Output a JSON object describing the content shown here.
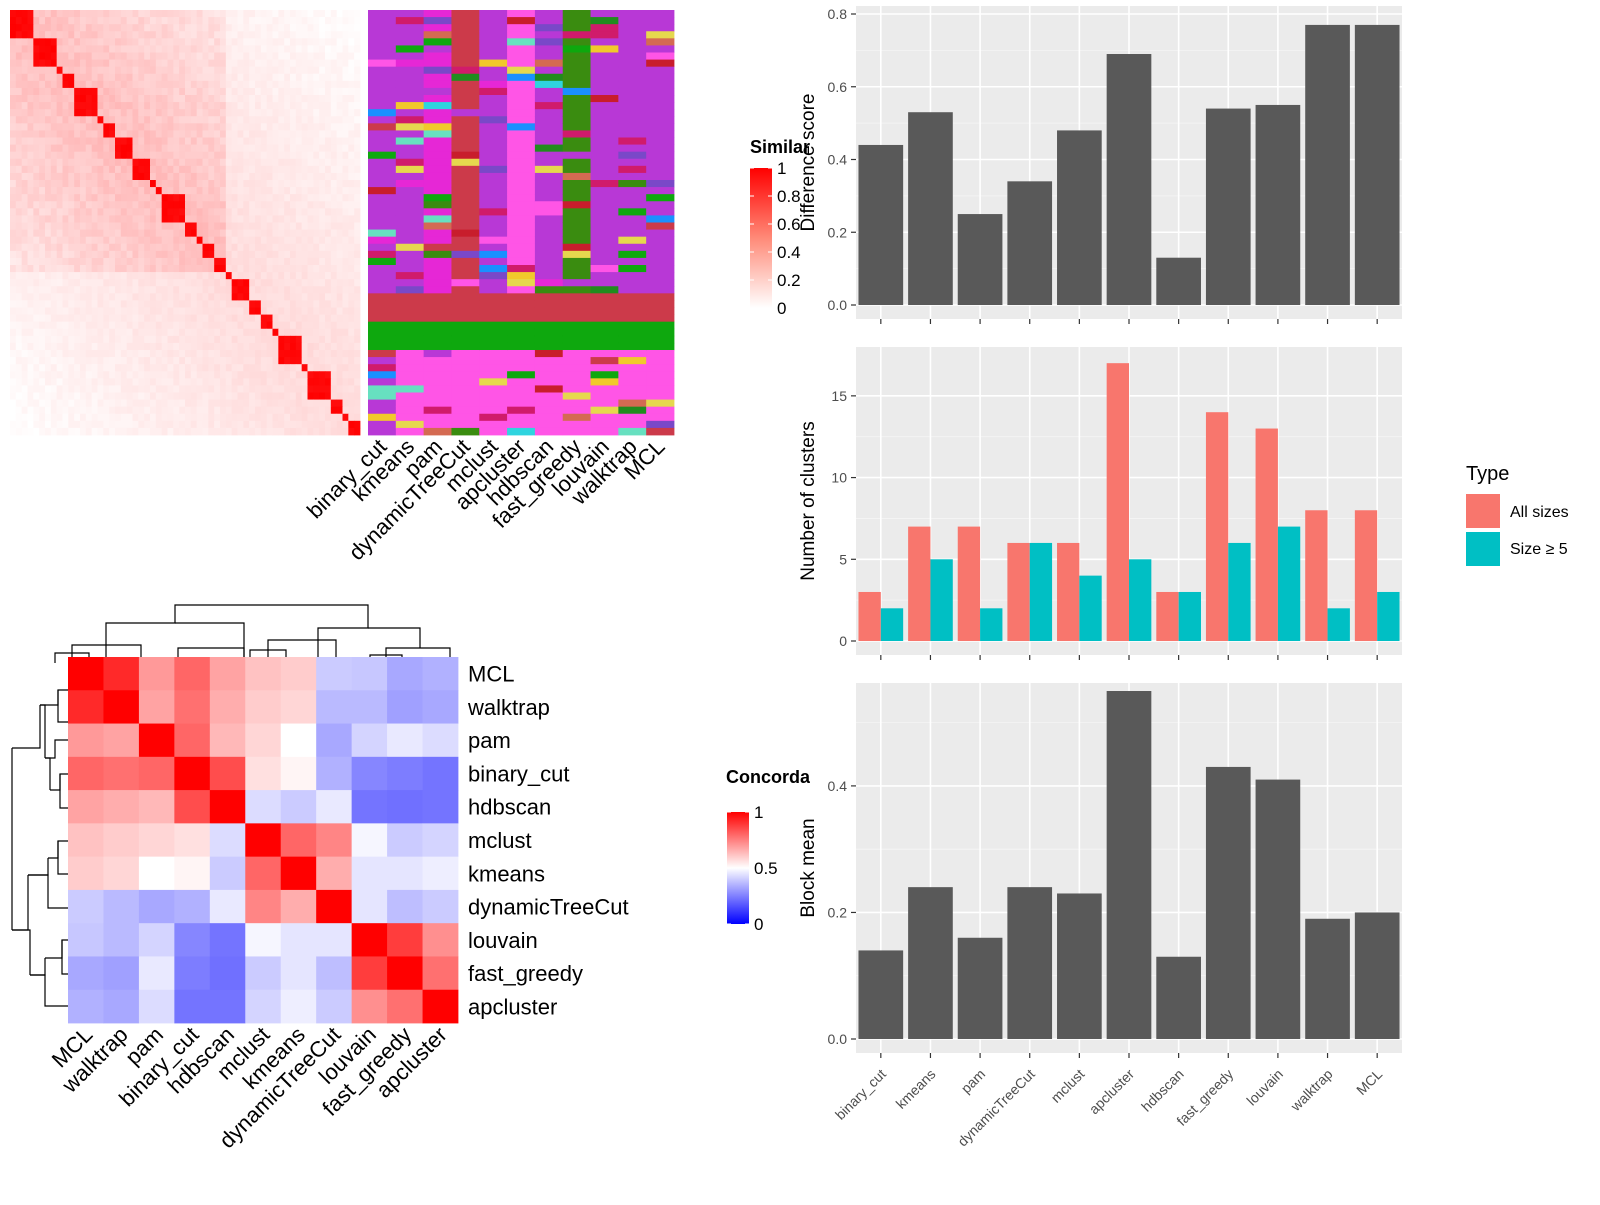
{
  "colors": {
    "panel_bg": "#ebebeb",
    "grid": "#ffffff",
    "bar_dark": "#595959",
    "all_sizes": "#f8766d",
    "size5": "#00bfc4",
    "sim_high": "#ff0000",
    "sim_low": "#ffffff",
    "conc_high": "#ff0000",
    "conc_mid": "#ffffff",
    "conc_low": "#0000ff",
    "cluster_palette": [
      "#b838d6",
      "#cc3a4a",
      "#0ea80e",
      "#ff55e6",
      "#e627d6",
      "#3a8c10",
      "#f1c92b",
      "#d46a52",
      "#d01b6b",
      "#2fd4df",
      "#c81d2c",
      "#7a48c8",
      "#e6d84e",
      "#218c1e",
      "#1a90ff",
      "#67e0c0"
    ]
  },
  "similarity_heatmap": {
    "legend_title": "Similarity",
    "legend_ticks": [
      "1",
      "0.8",
      "0.6",
      "0.4",
      "0.2",
      "0"
    ],
    "column_labels": [
      "binary_cut",
      "kmeans",
      "pam",
      "dynamicTreeCut",
      "mclust",
      "apcluster",
      "hdbscan",
      "fast_greedy",
      "louvain",
      "walktrap",
      "MCL"
    ]
  },
  "concordance_heatmap": {
    "legend_title": "Concordance",
    "legend_ticks": [
      "1",
      "0.5",
      "0"
    ],
    "labels": [
      "MCL",
      "walktrap",
      "pam",
      "binary_cut",
      "hdbscan",
      "mclust",
      "kmeans",
      "dynamicTreeCut",
      "louvain",
      "fast_greedy",
      "apcluster"
    ],
    "matrix": [
      [
        1.0,
        0.92,
        0.7,
        0.8,
        0.68,
        0.62,
        0.6,
        0.38,
        0.37,
        0.3,
        0.32
      ],
      [
        0.92,
        1.0,
        0.68,
        0.78,
        0.66,
        0.6,
        0.58,
        0.34,
        0.34,
        0.28,
        0.3
      ],
      [
        0.7,
        0.68,
        1.0,
        0.8,
        0.64,
        0.58,
        0.5,
        0.3,
        0.4,
        0.45,
        0.42
      ],
      [
        0.8,
        0.78,
        0.8,
        1.0,
        0.85,
        0.56,
        0.52,
        0.32,
        0.22,
        0.2,
        0.18
      ],
      [
        0.68,
        0.66,
        0.64,
        0.85,
        1.0,
        0.42,
        0.38,
        0.45,
        0.18,
        0.17,
        0.18
      ],
      [
        0.62,
        0.6,
        0.58,
        0.56,
        0.42,
        1.0,
        0.8,
        0.74,
        0.48,
        0.38,
        0.4
      ],
      [
        0.6,
        0.58,
        0.5,
        0.52,
        0.38,
        0.8,
        1.0,
        0.66,
        0.44,
        0.44,
        0.46
      ],
      [
        0.38,
        0.34,
        0.3,
        0.32,
        0.45,
        0.74,
        0.66,
        1.0,
        0.44,
        0.35,
        0.38
      ],
      [
        0.37,
        0.34,
        0.4,
        0.22,
        0.18,
        0.48,
        0.44,
        0.44,
        1.0,
        0.88,
        0.72
      ],
      [
        0.3,
        0.28,
        0.45,
        0.2,
        0.17,
        0.38,
        0.44,
        0.35,
        0.88,
        1.0,
        0.78
      ],
      [
        0.32,
        0.3,
        0.42,
        0.18,
        0.18,
        0.4,
        0.46,
        0.38,
        0.72,
        0.78,
        1.0
      ]
    ]
  },
  "chart_data": [
    {
      "type": "bar",
      "categories": [
        "binary_cut",
        "kmeans",
        "pam",
        "dynamicTreeCut",
        "mclust",
        "apcluster",
        "hdbscan",
        "fast_greedy",
        "louvain",
        "walktrap",
        "MCL"
      ],
      "values": [
        0.44,
        0.53,
        0.25,
        0.34,
        0.48,
        0.69,
        0.13,
        0.54,
        0.55,
        0.77,
        0.77
      ],
      "ylabel": "Difference score",
      "ylim": [
        0,
        0.8
      ],
      "yticks": [
        "0.0",
        "0.2",
        "0.4",
        "0.6",
        "0.8"
      ],
      "grid": true
    },
    {
      "type": "bar",
      "categories": [
        "binary_cut",
        "kmeans",
        "pam",
        "dynamicTreeCut",
        "mclust",
        "apcluster",
        "hdbscan",
        "fast_greedy",
        "louvain",
        "walktrap",
        "MCL"
      ],
      "series": [
        {
          "name": "All sizes",
          "values": [
            3,
            7,
            7,
            6,
            6,
            17,
            3,
            14,
            13,
            8,
            8
          ]
        },
        {
          "name": "Size ≥ 5",
          "values": [
            2,
            5,
            2,
            6,
            4,
            5,
            3,
            6,
            7,
            2,
            3
          ]
        }
      ],
      "ylabel": "Number of clusters",
      "ylim": [
        0,
        17.5
      ],
      "yticks": [
        "0",
        "5",
        "10",
        "15"
      ],
      "legend": {
        "title": "Type",
        "position": "right"
      },
      "grid": true
    },
    {
      "type": "bar",
      "categories": [
        "binary_cut",
        "kmeans",
        "pam",
        "dynamicTreeCut",
        "mclust",
        "apcluster",
        "hdbscan",
        "fast_greedy",
        "louvain",
        "walktrap",
        "MCL"
      ],
      "values": [
        0.14,
        0.24,
        0.16,
        0.24,
        0.23,
        0.55,
        0.13,
        0.43,
        0.41,
        0.19,
        0.2
      ],
      "ylabel": "Block mean",
      "ylim": [
        0,
        0.55
      ],
      "yticks": [
        "0.0",
        "0.2",
        "0.4"
      ],
      "grid": true
    }
  ]
}
